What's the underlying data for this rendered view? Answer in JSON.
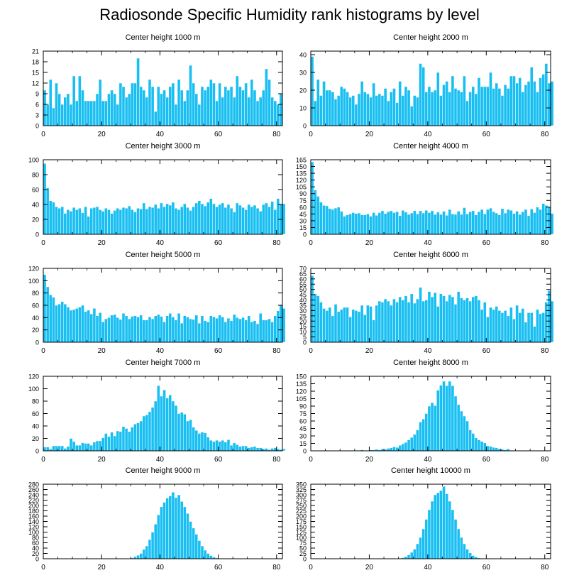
{
  "title": "Radiosonde Specific Humidity rank histograms by level",
  "colors": {
    "bar": "#19bff2",
    "bar_edge": "#ffffff",
    "axis": "#000000"
  },
  "chart_data": [
    {
      "type": "bar",
      "title": "Center height 1000 m",
      "xlim": [
        0,
        82
      ],
      "xticks": [
        0,
        20,
        40,
        60,
        80
      ],
      "ylim": [
        0,
        21
      ],
      "yticks": [
        0,
        3,
        6,
        9,
        12,
        15,
        18,
        21
      ],
      "values": [
        10,
        6,
        13,
        5,
        12,
        9,
        6,
        8,
        9,
        6,
        14,
        7,
        14,
        10,
        7,
        7,
        7,
        7,
        9,
        13,
        7,
        7,
        9,
        10,
        9,
        6,
        12,
        11,
        8,
        9,
        12,
        12,
        19,
        11,
        10,
        8,
        13,
        11,
        4,
        11,
        9,
        10,
        8,
        11,
        12,
        6,
        13,
        10,
        7,
        10,
        17,
        12,
        9,
        6,
        11,
        10,
        11,
        13,
        12,
        7,
        12,
        8,
        11,
        10,
        11,
        8,
        14,
        11,
        10,
        12,
        8,
        13,
        10,
        7,
        8,
        10,
        16,
        13,
        8,
        7,
        6,
        9
      ]
    },
    {
      "type": "bar",
      "title": "Center height 2000 m",
      "xlim": [
        0,
        82
      ],
      "xticks": [
        0,
        20,
        40,
        60,
        80
      ],
      "ylim": [
        0,
        42
      ],
      "yticks": [
        0,
        10,
        20,
        30,
        40
      ],
      "values": [
        39,
        14,
        26,
        17,
        25,
        20,
        20,
        19,
        15,
        17,
        22,
        21,
        19,
        16,
        17,
        12,
        18,
        25,
        19,
        18,
        16,
        24,
        17,
        18,
        17,
        21,
        14,
        19,
        21,
        13,
        25,
        17,
        22,
        20,
        11,
        17,
        16,
        35,
        33,
        19,
        22,
        19,
        20,
        30,
        17,
        23,
        25,
        19,
        28,
        21,
        20,
        19,
        28,
        14,
        19,
        22,
        18,
        27,
        22,
        22,
        22,
        30,
        21,
        24,
        21,
        17,
        23,
        21,
        28,
        28,
        24,
        27,
        19,
        23,
        25,
        33,
        25,
        19,
        27,
        29,
        35,
        24,
        25
      ]
    },
    {
      "type": "bar",
      "title": "Center height 3000 m",
      "xlim": [
        0,
        82
      ],
      "xticks": [
        0,
        20,
        40,
        60,
        80
      ],
      "ylim": [
        0,
        100
      ],
      "yticks": [
        0,
        20,
        40,
        60,
        80,
        100
      ],
      "values": [
        95,
        62,
        45,
        43,
        37,
        35,
        37,
        28,
        33,
        31,
        36,
        33,
        35,
        29,
        37,
        24,
        35,
        36,
        37,
        33,
        31,
        35,
        33,
        28,
        32,
        35,
        33,
        36,
        35,
        38,
        33,
        30,
        35,
        34,
        42,
        34,
        37,
        36,
        40,
        35,
        42,
        37,
        41,
        39,
        43,
        35,
        33,
        37,
        41,
        36,
        32,
        37,
        42,
        45,
        41,
        38,
        43,
        48,
        41,
        37,
        40,
        42,
        36,
        40,
        35,
        30,
        42,
        39,
        36,
        33,
        40,
        37,
        39,
        35,
        31,
        40,
        42,
        37,
        44,
        33,
        48,
        40,
        41
      ]
    },
    {
      "type": "bar",
      "title": "Center height 4000 m",
      "xlim": [
        0,
        82
      ],
      "xticks": [
        0,
        20,
        40,
        60,
        80
      ],
      "ylim": [
        0,
        165
      ],
      "yticks": [
        0,
        15,
        30,
        45,
        60,
        75,
        90,
        105,
        120,
        135,
        150,
        165
      ],
      "values": [
        160,
        98,
        84,
        71,
        64,
        63,
        57,
        55,
        58,
        60,
        51,
        40,
        43,
        45,
        48,
        46,
        47,
        43,
        43,
        45,
        40,
        48,
        42,
        48,
        52,
        46,
        50,
        52,
        48,
        50,
        41,
        53,
        49,
        44,
        47,
        52,
        45,
        52,
        47,
        53,
        48,
        52,
        44,
        49,
        44,
        51,
        42,
        55,
        45,
        44,
        51,
        44,
        59,
        45,
        50,
        52,
        43,
        50,
        55,
        45,
        55,
        58,
        50,
        47,
        43,
        57,
        47,
        55,
        53,
        46,
        51,
        44,
        50,
        55,
        41,
        56,
        48,
        60,
        55,
        68,
        64,
        61,
        46
      ]
    },
    {
      "type": "bar",
      "title": "Center height 5000 m",
      "xlim": [
        0,
        82
      ],
      "xticks": [
        0,
        20,
        40,
        60,
        80
      ],
      "ylim": [
        0,
        120
      ],
      "yticks": [
        0,
        20,
        40,
        60,
        80,
        100,
        120
      ],
      "values": [
        110,
        90,
        77,
        73,
        60,
        62,
        66,
        62,
        57,
        52,
        53,
        55,
        57,
        60,
        50,
        52,
        46,
        55,
        43,
        48,
        33,
        38,
        40,
        44,
        45,
        40,
        37,
        47,
        43,
        38,
        42,
        43,
        41,
        44,
        36,
        36,
        41,
        38,
        43,
        45,
        42,
        33,
        43,
        47,
        41,
        36,
        47,
        31,
        43,
        41,
        38,
        37,
        44,
        31,
        43,
        35,
        33,
        43,
        41,
        39,
        44,
        41,
        33,
        39,
        35,
        45,
        40,
        38,
        40,
        36,
        43,
        33,
        35,
        30,
        47,
        36,
        36,
        38,
        33,
        43,
        51,
        61,
        55
      ]
    },
    {
      "type": "bar",
      "title": "Center height 6000 m",
      "xlim": [
        0,
        82
      ],
      "xticks": [
        0,
        20,
        40,
        60,
        80
      ],
      "ylim": [
        0,
        70
      ],
      "yticks": [
        0,
        5,
        10,
        15,
        20,
        25,
        30,
        35,
        40,
        45,
        50,
        55,
        60,
        65,
        70
      ],
      "values": [
        63,
        46,
        44,
        38,
        32,
        30,
        33,
        25,
        36,
        29,
        31,
        33,
        33,
        24,
        31,
        30,
        29,
        35,
        26,
        35,
        34,
        21,
        35,
        39,
        38,
        41,
        39,
        35,
        41,
        38,
        43,
        40,
        44,
        38,
        46,
        37,
        41,
        52,
        39,
        40,
        48,
        43,
        47,
        34,
        46,
        44,
        39,
        45,
        43,
        36,
        48,
        42,
        40,
        42,
        39,
        43,
        44,
        40,
        31,
        38,
        24,
        33,
        31,
        34,
        30,
        28,
        30,
        25,
        33,
        22,
        35,
        28,
        32,
        19,
        28,
        28,
        15,
        31,
        27,
        28,
        38,
        49,
        39
      ]
    },
    {
      "type": "bar",
      "title": "Center height 7000 m",
      "xlim": [
        0,
        82
      ],
      "xticks": [
        0,
        20,
        40,
        60,
        80
      ],
      "ylim": [
        0,
        120
      ],
      "yticks": [
        0,
        20,
        40,
        60,
        80,
        100,
        120
      ],
      "values": [
        6,
        6,
        3,
        8,
        8,
        8,
        8,
        4,
        7,
        20,
        15,
        9,
        9,
        13,
        12,
        12,
        9,
        14,
        16,
        16,
        21,
        28,
        23,
        30,
        24,
        32,
        31,
        39,
        36,
        31,
        38,
        43,
        45,
        48,
        56,
        58,
        63,
        70,
        80,
        105,
        88,
        98,
        85,
        90,
        80,
        73,
        60,
        62,
        59,
        48,
        50,
        38,
        33,
        28,
        30,
        29,
        22,
        17,
        15,
        17,
        15,
        17,
        14,
        18,
        9,
        13,
        10,
        7,
        8,
        8,
        5,
        6,
        7,
        5,
        5,
        3,
        4,
        2,
        4,
        5,
        3,
        2,
        3
      ]
    },
    {
      "type": "bar",
      "title": "Center height 8000 m",
      "xlim": [
        0,
        82
      ],
      "xticks": [
        0,
        20,
        40,
        60,
        80
      ],
      "ylim": [
        0,
        150
      ],
      "yticks": [
        0,
        15,
        30,
        45,
        60,
        75,
        90,
        105,
        120,
        135,
        150
      ],
      "values": [
        0,
        0,
        0,
        0,
        0,
        0,
        0,
        0,
        0,
        0,
        0,
        0,
        0,
        1,
        0,
        1,
        0,
        2,
        0,
        1,
        2,
        2,
        3,
        2,
        4,
        3,
        5,
        6,
        8,
        7,
        11,
        14,
        17,
        22,
        27,
        33,
        42,
        58,
        64,
        75,
        90,
        97,
        91,
        122,
        132,
        140,
        131,
        140,
        131,
        110,
        93,
        80,
        70,
        60,
        42,
        35,
        26,
        22,
        19,
        16,
        10,
        9,
        7,
        6,
        4,
        3,
        2,
        4,
        1,
        1,
        0,
        0,
        1,
        0,
        0,
        0,
        0,
        0,
        1,
        0,
        0,
        0,
        0
      ]
    },
    {
      "type": "bar",
      "title": "Center height 9000 m",
      "xlim": [
        0,
        82
      ],
      "xticks": [
        0,
        20,
        40,
        60,
        80
      ],
      "ylim": [
        0,
        280
      ],
      "yticks": [
        0,
        20,
        40,
        60,
        80,
        100,
        120,
        140,
        160,
        180,
        200,
        220,
        240,
        260,
        280
      ],
      "values": [
        0,
        0,
        0,
        0,
        0,
        0,
        0,
        0,
        0,
        0,
        0,
        0,
        0,
        0,
        0,
        0,
        0,
        0,
        0,
        0,
        0,
        0,
        0,
        0,
        0,
        0,
        0,
        0,
        1,
        2,
        3,
        8,
        13,
        20,
        35,
        48,
        72,
        100,
        130,
        165,
        195,
        212,
        228,
        236,
        250,
        230,
        240,
        215,
        195,
        170,
        140,
        115,
        92,
        68,
        48,
        32,
        20,
        12,
        6,
        3,
        2,
        1,
        0,
        0,
        0,
        0,
        0,
        0,
        0,
        0,
        0,
        0,
        0,
        0,
        0,
        0,
        0,
        0,
        0,
        0,
        0,
        0,
        0
      ]
    },
    {
      "type": "bar",
      "title": "Center height 10000 m",
      "xlim": [
        0,
        82
      ],
      "xticks": [
        0,
        20,
        40,
        60,
        80
      ],
      "ylim": [
        0,
        350
      ],
      "yticks": [
        0,
        25,
        50,
        75,
        100,
        125,
        150,
        175,
        200,
        225,
        250,
        275,
        300,
        325,
        350
      ],
      "values": [
        0,
        0,
        0,
        0,
        0,
        0,
        0,
        0,
        0,
        0,
        0,
        0,
        0,
        0,
        0,
        0,
        0,
        0,
        0,
        0,
        0,
        0,
        0,
        0,
        0,
        0,
        0,
        0,
        0,
        1,
        2,
        5,
        10,
        18,
        30,
        45,
        70,
        100,
        140,
        185,
        230,
        270,
        300,
        310,
        320,
        340,
        305,
        270,
        230,
        185,
        140,
        100,
        70,
        45,
        28,
        15,
        8,
        4,
        2,
        1,
        0,
        0,
        0,
        0,
        0,
        0,
        0,
        0,
        0,
        0,
        0,
        0,
        0,
        0,
        0,
        0,
        0,
        0,
        0,
        0,
        0,
        0,
        0
      ]
    }
  ]
}
